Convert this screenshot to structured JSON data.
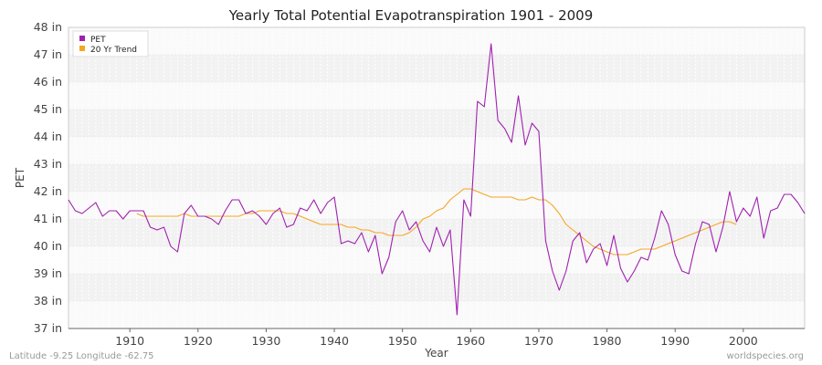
{
  "chart_data": {
    "type": "line",
    "title": "Yearly Total Potential Evapotranspiration 1901 - 2009",
    "xlabel": "Year",
    "ylabel": "PET",
    "xlim": [
      1901,
      2009
    ],
    "ylim": [
      37,
      48
    ],
    "x_ticks": [
      1910,
      1920,
      1930,
      1940,
      1950,
      1960,
      1970,
      1980,
      1990,
      2000
    ],
    "y_ticks": [
      37,
      38,
      39,
      40,
      41,
      42,
      43,
      44,
      45,
      46,
      47,
      48
    ],
    "y_tick_labels": [
      "37 in",
      "38 in",
      "39 in",
      "40 in",
      "41 in",
      "42 in",
      "43 in",
      "44 in",
      "45 in",
      "46 in",
      "47 in",
      "48 in"
    ],
    "legend": {
      "position": "top-left",
      "entries": [
        "PET",
        "20 Yr Trend"
      ]
    },
    "colors": {
      "pet": "#a020b0",
      "trend": "#f5a623"
    },
    "series": [
      {
        "name": "PET",
        "x_start": 1901,
        "values": [
          41.7,
          41.3,
          41.2,
          41.4,
          41.6,
          41.1,
          41.3,
          41.3,
          41.0,
          41.3,
          41.3,
          41.3,
          40.7,
          40.6,
          40.7,
          40.0,
          39.8,
          41.2,
          41.5,
          41.1,
          41.1,
          41.0,
          40.8,
          41.3,
          41.7,
          41.7,
          41.2,
          41.3,
          41.1,
          40.8,
          41.2,
          41.4,
          40.7,
          40.8,
          41.4,
          41.3,
          41.7,
          41.2,
          41.6,
          41.8,
          40.1,
          40.2,
          40.1,
          40.5,
          39.8,
          40.4,
          39.0,
          39.6,
          40.9,
          41.3,
          40.6,
          40.9,
          40.2,
          39.8,
          40.7,
          40.0,
          40.6,
          37.5,
          41.7,
          41.1,
          45.3,
          45.1,
          47.4,
          44.6,
          44.3,
          43.8,
          45.5,
          43.7,
          44.5,
          44.2,
          40.2,
          39.1,
          38.4,
          39.1,
          40.2,
          40.5,
          39.4,
          39.9,
          40.1,
          39.3,
          40.4,
          39.2,
          38.7,
          39.1,
          39.6,
          39.5,
          40.3,
          41.3,
          40.8,
          39.7,
          39.1,
          39.0,
          40.1,
          40.9,
          40.8,
          39.8,
          40.7,
          42.0,
          40.9,
          41.4,
          41.1,
          41.8,
          40.3,
          41.3,
          41.4,
          41.9,
          41.9,
          41.6,
          41.2
        ]
      },
      {
        "name": "20 Yr Trend",
        "x_start": 1911,
        "values": [
          41.2,
          41.1,
          41.1,
          41.1,
          41.1,
          41.1,
          41.1,
          41.2,
          41.1,
          41.1,
          41.1,
          41.1,
          41.1,
          41.1,
          41.1,
          41.1,
          41.2,
          41.2,
          41.3,
          41.3,
          41.3,
          41.3,
          41.2,
          41.2,
          41.1,
          41.0,
          40.9,
          40.8,
          40.8,
          40.8,
          40.8,
          40.7,
          40.7,
          40.6,
          40.6,
          40.5,
          40.5,
          40.4,
          40.4,
          40.4,
          40.5,
          40.7,
          41.0,
          41.1,
          41.3,
          41.4,
          41.7,
          41.9,
          42.1,
          42.1,
          42.0,
          41.9,
          41.8,
          41.8,
          41.8,
          41.8,
          41.7,
          41.7,
          41.8,
          41.7,
          41.7,
          41.5,
          41.2,
          40.8,
          40.6,
          40.4,
          40.2,
          40.0,
          39.9,
          39.8,
          39.7,
          39.7,
          39.7,
          39.8,
          39.9,
          39.9,
          39.9,
          40.0,
          40.1,
          40.2,
          40.3,
          40.4,
          40.5,
          40.6,
          40.7,
          40.8,
          40.9,
          40.9,
          40.8
        ]
      }
    ]
  },
  "footer": {
    "coords": "Latitude -9.25 Longitude -62.75",
    "source": "worldspecies.org"
  }
}
